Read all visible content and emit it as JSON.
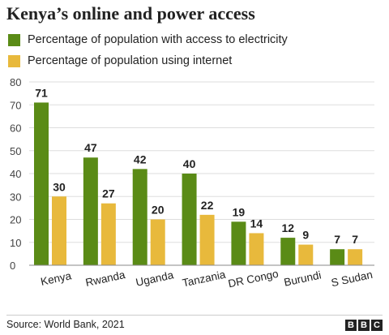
{
  "title": "Kenya’s online and power access",
  "source": "Source: World Bank, 2021",
  "logo": [
    "B",
    "B",
    "C"
  ],
  "colors": {
    "electricity": "#5a8b16",
    "internet": "#e8b93c",
    "grid": "#dddddd",
    "axis": "#888888"
  },
  "chart_data": {
    "type": "bar",
    "categories": [
      "Kenya",
      "Rwanda",
      "Uganda",
      "Tanzania",
      "DR Congo",
      "Burundi",
      "S Sudan"
    ],
    "series": [
      {
        "name": "Percentage of population with access to electricity",
        "values": [
          71,
          47,
          42,
          40,
          19,
          12,
          7
        ]
      },
      {
        "name": "Percentage of population using internet",
        "values": [
          30,
          27,
          20,
          22,
          14,
          9,
          7
        ]
      }
    ],
    "ylim": [
      0,
      80
    ],
    "yticks": [
      0,
      10,
      20,
      30,
      40,
      50,
      60,
      70,
      80
    ],
    "grid": true,
    "legend": "top-left",
    "data_labels": true
  }
}
